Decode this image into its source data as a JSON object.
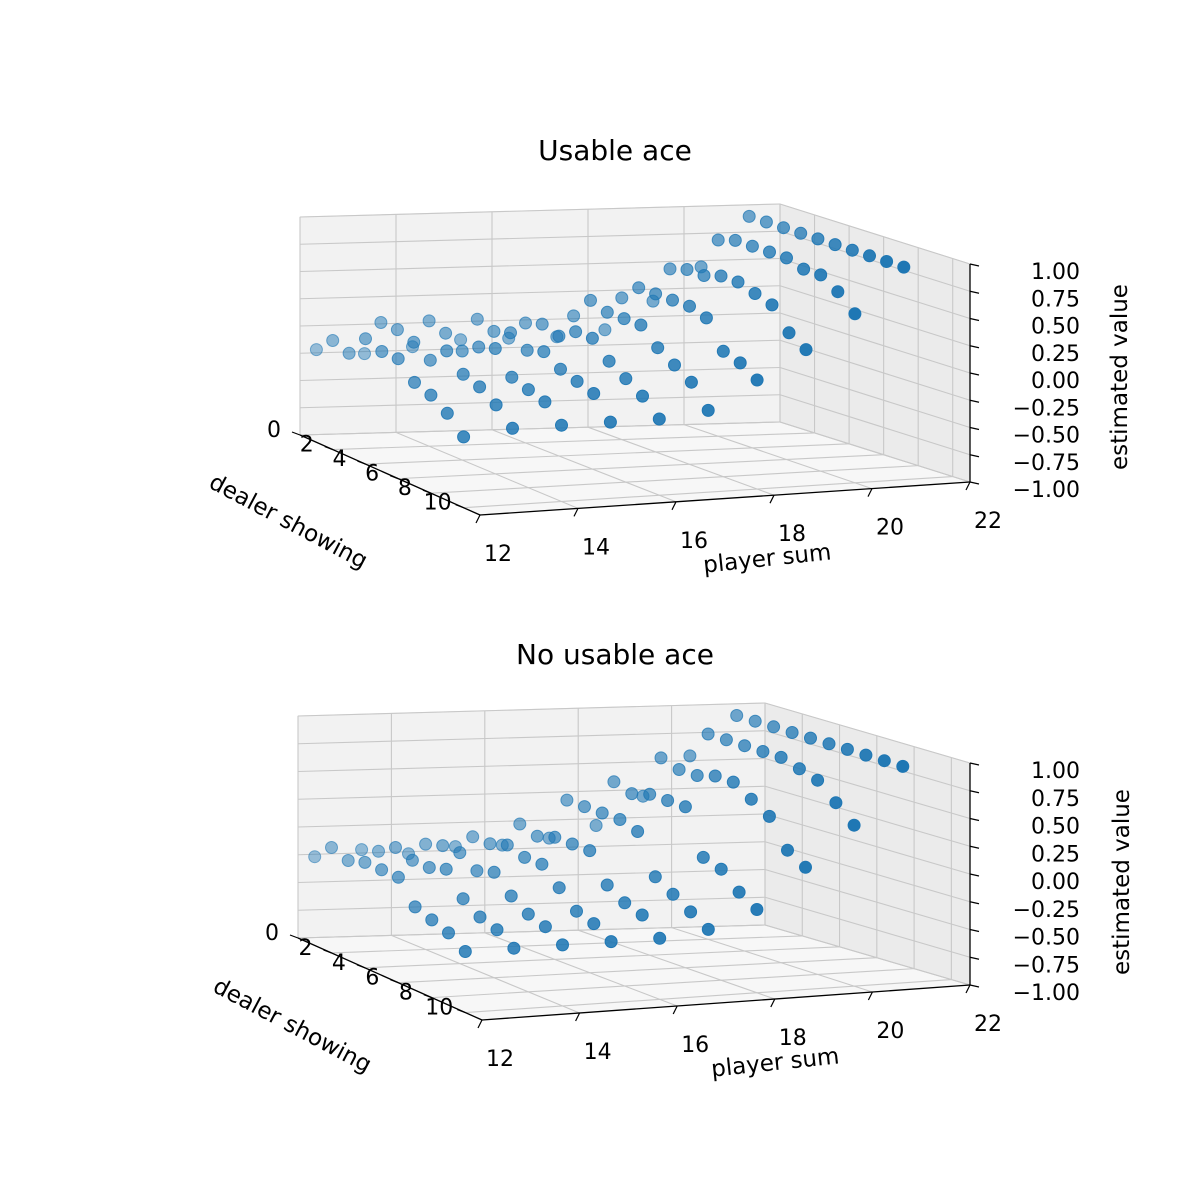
{
  "chart_data": [
    {
      "type": "scatter3d",
      "title": "Usable ace",
      "xlabel": "player sum",
      "ylabel": "dealer showing",
      "zlabel": "estimated value",
      "xlim": [
        12,
        22
      ],
      "ylim": [
        0,
        11
      ],
      "zlim": [
        -1.0,
        1.0
      ],
      "xticks": [
        "12",
        "14",
        "16",
        "18",
        "20",
        "22"
      ],
      "yticks": [
        "0",
        "2",
        "4",
        "6",
        "8",
        "10"
      ],
      "zticks": [
        "1.00",
        "0.75",
        "0.50",
        "0.25",
        "0.00",
        "−0.25",
        "−0.50",
        "−0.75",
        "−1.00"
      ],
      "grid": true,
      "marker_color": "#1f77b4",
      "points": [
        {
          "x": 12,
          "y": 1,
          "z": -0.15
        },
        {
          "x": 13,
          "y": 1,
          "z": -0.2
        },
        {
          "x": 14,
          "y": 1,
          "z": -0.15
        },
        {
          "x": 15,
          "y": 1,
          "z": -0.1
        },
        {
          "x": 16,
          "y": 1,
          "z": -0.1
        },
        {
          "x": 17,
          "y": 1,
          "z": -0.1
        },
        {
          "x": 18,
          "y": 1,
          "z": -0.05
        },
        {
          "x": 19,
          "y": 1,
          "z": 0.2
        },
        {
          "x": 20,
          "y": 1,
          "z": 0.5
        },
        {
          "x": 21,
          "y": 1,
          "z": 0.95
        },
        {
          "x": 12,
          "y": 2,
          "z": 0.0
        },
        {
          "x": 13,
          "y": 2,
          "z": 0.15
        },
        {
          "x": 14,
          "y": 2,
          "z": 0.15
        },
        {
          "x": 15,
          "y": 2,
          "z": 0.15
        },
        {
          "x": 16,
          "y": 2,
          "z": 0.1
        },
        {
          "x": 17,
          "y": 2,
          "z": 0.15
        },
        {
          "x": 18,
          "y": 2,
          "z": 0.3
        },
        {
          "x": 19,
          "y": 2,
          "z": 0.55
        },
        {
          "x": 20,
          "y": 2,
          "z": 0.8
        },
        {
          "x": 21,
          "y": 2,
          "z": 0.95
        },
        {
          "x": 12,
          "y": 3,
          "z": -0.05
        },
        {
          "x": 13,
          "y": 3,
          "z": 0.15
        },
        {
          "x": 14,
          "y": 3,
          "z": 0.1
        },
        {
          "x": 15,
          "y": 3,
          "z": 0.1
        },
        {
          "x": 16,
          "y": 3,
          "z": 0.15
        },
        {
          "x": 17,
          "y": 3,
          "z": 0.35
        },
        {
          "x": 18,
          "y": 3,
          "z": 0.45
        },
        {
          "x": 19,
          "y": 3,
          "z": 0.6
        },
        {
          "x": 20,
          "y": 3,
          "z": 0.85
        },
        {
          "x": 21,
          "y": 3,
          "z": 0.95
        },
        {
          "x": 12,
          "y": 4,
          "z": 0.15
        },
        {
          "x": 13,
          "y": 4,
          "z": 0.1
        },
        {
          "x": 14,
          "y": 4,
          "z": 0.0
        },
        {
          "x": 15,
          "y": 4,
          "z": 0.15
        },
        {
          "x": 16,
          "y": 4,
          "z": 0.1
        },
        {
          "x": 17,
          "y": 4,
          "z": 0.3
        },
        {
          "x": 18,
          "y": 4,
          "z": 0.45
        },
        {
          "x": 19,
          "y": 4,
          "z": 0.6
        },
        {
          "x": 20,
          "y": 4,
          "z": 0.85
        },
        {
          "x": 21,
          "y": 4,
          "z": 0.95
        },
        {
          "x": 12,
          "y": 5,
          "z": 0.1
        },
        {
          "x": 13,
          "y": 5,
          "z": 0.0
        },
        {
          "x": 14,
          "y": 5,
          "z": 0.1
        },
        {
          "x": 15,
          "y": 5,
          "z": 0.05
        },
        {
          "x": 16,
          "y": 5,
          "z": 0.2
        },
        {
          "x": 17,
          "y": 5,
          "z": 0.3
        },
        {
          "x": 18,
          "y": 5,
          "z": 0.45
        },
        {
          "x": 19,
          "y": 5,
          "z": 0.65
        },
        {
          "x": 20,
          "y": 5,
          "z": 0.85
        },
        {
          "x": 21,
          "y": 5,
          "z": 0.95
        },
        {
          "x": 12,
          "y": 6,
          "z": 0.1
        },
        {
          "x": 13,
          "y": 6,
          "z": 0.15
        },
        {
          "x": 14,
          "y": 6,
          "z": 0.15
        },
        {
          "x": 15,
          "y": 6,
          "z": 0.1
        },
        {
          "x": 16,
          "y": 6,
          "z": 0.2
        },
        {
          "x": 17,
          "y": 6,
          "z": 0.3
        },
        {
          "x": 18,
          "y": 6,
          "z": 0.45
        },
        {
          "x": 19,
          "y": 6,
          "z": 0.65
        },
        {
          "x": 20,
          "y": 6,
          "z": 0.85
        },
        {
          "x": 21,
          "y": 6,
          "z": 0.95
        },
        {
          "x": 12,
          "y": 7,
          "z": -0.05
        },
        {
          "x": 13,
          "y": 7,
          "z": 0.0
        },
        {
          "x": 14,
          "y": 7,
          "z": -0.05
        },
        {
          "x": 15,
          "y": 7,
          "z": 0.0
        },
        {
          "x": 16,
          "y": 7,
          "z": 0.05
        },
        {
          "x": 17,
          "y": 7,
          "z": 0.15
        },
        {
          "x": 18,
          "y": 7,
          "z": 0.4
        },
        {
          "x": 19,
          "y": 7,
          "z": 0.6
        },
        {
          "x": 20,
          "y": 7,
          "z": 0.8
        },
        {
          "x": 21,
          "y": 7,
          "z": 0.95
        },
        {
          "x": 12,
          "y": 8,
          "z": -0.1
        },
        {
          "x": 13,
          "y": 8,
          "z": -0.05
        },
        {
          "x": 14,
          "y": 8,
          "z": -0.1
        },
        {
          "x": 15,
          "y": 8,
          "z": -0.05
        },
        {
          "x": 16,
          "y": 8,
          "z": -0.05
        },
        {
          "x": 17,
          "y": 8,
          "z": 0.05
        },
        {
          "x": 18,
          "y": 8,
          "z": 0.15
        },
        {
          "x": 19,
          "y": 8,
          "z": 0.55
        },
        {
          "x": 20,
          "y": 8,
          "z": 0.8
        },
        {
          "x": 21,
          "y": 8,
          "z": 0.95
        },
        {
          "x": 12,
          "y": 9,
          "z": -0.2
        },
        {
          "x": 13,
          "y": 9,
          "z": -0.15
        },
        {
          "x": 14,
          "y": 9,
          "z": -0.15
        },
        {
          "x": 15,
          "y": 9,
          "z": -0.1
        },
        {
          "x": 16,
          "y": 9,
          "z": -0.15
        },
        {
          "x": 17,
          "y": 9,
          "z": -0.05
        },
        {
          "x": 18,
          "y": 9,
          "z": 0.1
        },
        {
          "x": 19,
          "y": 9,
          "z": 0.35
        },
        {
          "x": 20,
          "y": 9,
          "z": 0.7
        },
        {
          "x": 21,
          "y": 9,
          "z": 0.95
        },
        {
          "x": 12,
          "y": 10,
          "z": -0.35
        },
        {
          "x": 13,
          "y": 10,
          "z": -0.3
        },
        {
          "x": 14,
          "y": 10,
          "z": -0.3
        },
        {
          "x": 15,
          "y": 10,
          "z": -0.3
        },
        {
          "x": 16,
          "y": 10,
          "z": -0.3
        },
        {
          "x": 17,
          "y": 10,
          "z": -0.25
        },
        {
          "x": 18,
          "y": 10,
          "z": 0.0
        },
        {
          "x": 19,
          "y": 10,
          "z": 0.25
        },
        {
          "x": 20,
          "y": 10,
          "z": 0.55
        },
        {
          "x": 21,
          "y": 10,
          "z": 0.95
        }
      ]
    },
    {
      "type": "scatter3d",
      "title": "No usable ace",
      "xlabel": "player sum",
      "ylabel": "dealer showing",
      "zlabel": "estimated value",
      "xlim": [
        12,
        22
      ],
      "ylim": [
        0,
        11
      ],
      "zlim": [
        -1.0,
        1.0
      ],
      "xticks": [
        "12",
        "14",
        "16",
        "18",
        "20",
        "22"
      ],
      "yticks": [
        "0",
        "2",
        "4",
        "6",
        "8",
        "10"
      ],
      "zticks": [
        "1.00",
        "0.75",
        "0.50",
        "0.25",
        "0.00",
        "−0.25",
        "−0.50",
        "−0.75",
        "−1.00"
      ],
      "grid": true,
      "marker_color": "#1f77b4",
      "points": [
        {
          "x": 12,
          "y": 1,
          "z": -0.2
        },
        {
          "x": 13,
          "y": 1,
          "z": -0.15
        },
        {
          "x": 14,
          "y": 1,
          "z": -0.2
        },
        {
          "x": 15,
          "y": 1,
          "z": -0.15
        },
        {
          "x": 16,
          "y": 1,
          "z": -0.15
        },
        {
          "x": 17,
          "y": 1,
          "z": -0.1
        },
        {
          "x": 18,
          "y": 1,
          "z": 0.0
        },
        {
          "x": 19,
          "y": 1,
          "z": 0.25
        },
        {
          "x": 20,
          "y": 1,
          "z": 0.6
        },
        {
          "x": 21,
          "y": 1,
          "z": 0.95
        },
        {
          "x": 12,
          "y": 2,
          "z": -0.05
        },
        {
          "x": 13,
          "y": 2,
          "z": -0.1
        },
        {
          "x": 14,
          "y": 2,
          "z": -0.05
        },
        {
          "x": 15,
          "y": 2,
          "z": 0.0
        },
        {
          "x": 16,
          "y": 2,
          "z": 0.1
        },
        {
          "x": 17,
          "y": 2,
          "z": 0.3
        },
        {
          "x": 18,
          "y": 2,
          "z": 0.45
        },
        {
          "x": 19,
          "y": 2,
          "z": 0.65
        },
        {
          "x": 20,
          "y": 2,
          "z": 0.85
        },
        {
          "x": 21,
          "y": 2,
          "z": 0.95
        },
        {
          "x": 12,
          "y": 3,
          "z": -0.1
        },
        {
          "x": 13,
          "y": 3,
          "z": 0.0
        },
        {
          "x": 14,
          "y": 3,
          "z": 0.0
        },
        {
          "x": 15,
          "y": 3,
          "z": 0.0
        },
        {
          "x": 16,
          "y": 3,
          "z": 0.05
        },
        {
          "x": 17,
          "y": 3,
          "z": 0.3
        },
        {
          "x": 18,
          "y": 3,
          "z": 0.4
        },
        {
          "x": 19,
          "y": 3,
          "z": 0.6
        },
        {
          "x": 20,
          "y": 3,
          "z": 0.85
        },
        {
          "x": 21,
          "y": 3,
          "z": 0.95
        },
        {
          "x": 12,
          "y": 4,
          "z": -0.05
        },
        {
          "x": 13,
          "y": 4,
          "z": -0.05
        },
        {
          "x": 14,
          "y": 4,
          "z": 0.0
        },
        {
          "x": 15,
          "y": 4,
          "z": 0.05
        },
        {
          "x": 16,
          "y": 4,
          "z": 0.1
        },
        {
          "x": 17,
          "y": 4,
          "z": 0.3
        },
        {
          "x": 18,
          "y": 4,
          "z": 0.45
        },
        {
          "x": 19,
          "y": 4,
          "z": 0.6
        },
        {
          "x": 20,
          "y": 4,
          "z": 0.85
        },
        {
          "x": 21,
          "y": 4,
          "z": 0.95
        },
        {
          "x": 12,
          "y": 5,
          "z": -0.05
        },
        {
          "x": 13,
          "y": 5,
          "z": -0.05
        },
        {
          "x": 14,
          "y": 5,
          "z": -0.1
        },
        {
          "x": 15,
          "y": 5,
          "z": 0.0
        },
        {
          "x": 16,
          "y": 5,
          "z": 0.1
        },
        {
          "x": 17,
          "y": 5,
          "z": 0.3
        },
        {
          "x": 18,
          "y": 5,
          "z": 0.45
        },
        {
          "x": 19,
          "y": 5,
          "z": 0.65
        },
        {
          "x": 20,
          "y": 5,
          "z": 0.85
        },
        {
          "x": 21,
          "y": 5,
          "z": 0.95
        },
        {
          "x": 12,
          "y": 6,
          "z": -0.05
        },
        {
          "x": 13,
          "y": 6,
          "z": 0.0
        },
        {
          "x": 14,
          "y": 6,
          "z": -0.05
        },
        {
          "x": 15,
          "y": 6,
          "z": 0.0
        },
        {
          "x": 16,
          "y": 6,
          "z": 0.1
        },
        {
          "x": 17,
          "y": 6,
          "z": 0.25
        },
        {
          "x": 18,
          "y": 6,
          "z": 0.45
        },
        {
          "x": 19,
          "y": 6,
          "z": 0.65
        },
        {
          "x": 20,
          "y": 6,
          "z": 0.85
        },
        {
          "x": 21,
          "y": 6,
          "z": 0.95
        },
        {
          "x": 12,
          "y": 7,
          "z": -0.25
        },
        {
          "x": 13,
          "y": 7,
          "z": -0.2
        },
        {
          "x": 14,
          "y": 7,
          "z": -0.2
        },
        {
          "x": 15,
          "y": 7,
          "z": -0.15
        },
        {
          "x": 16,
          "y": 7,
          "z": -0.15
        },
        {
          "x": 17,
          "y": 7,
          "z": -0.1
        },
        {
          "x": 18,
          "y": 7,
          "z": 0.05
        },
        {
          "x": 19,
          "y": 7,
          "z": 0.55
        },
        {
          "x": 20,
          "y": 7,
          "z": 0.8
        },
        {
          "x": 21,
          "y": 7,
          "z": 0.95
        },
        {
          "x": 12,
          "y": 8,
          "z": -0.3
        },
        {
          "x": 13,
          "y": 8,
          "z": -0.3
        },
        {
          "x": 14,
          "y": 8,
          "z": -0.3
        },
        {
          "x": 15,
          "y": 8,
          "z": -0.3
        },
        {
          "x": 16,
          "y": 8,
          "z": -0.25
        },
        {
          "x": 17,
          "y": 8,
          "z": -0.2
        },
        {
          "x": 18,
          "y": 8,
          "z": 0.0
        },
        {
          "x": 19,
          "y": 8,
          "z": 0.45
        },
        {
          "x": 20,
          "y": 8,
          "z": 0.75
        },
        {
          "x": 21,
          "y": 8,
          "z": 0.95
        },
        {
          "x": 12,
          "y": 9,
          "z": -0.35
        },
        {
          "x": 13,
          "y": 9,
          "z": -0.35
        },
        {
          "x": 14,
          "y": 9,
          "z": -0.35
        },
        {
          "x": 15,
          "y": 9,
          "z": -0.35
        },
        {
          "x": 16,
          "y": 9,
          "z": -0.3
        },
        {
          "x": 17,
          "y": 9,
          "z": -0.3
        },
        {
          "x": 18,
          "y": 9,
          "z": -0.15
        },
        {
          "x": 19,
          "y": 9,
          "z": 0.2
        },
        {
          "x": 20,
          "y": 9,
          "z": 0.6
        },
        {
          "x": 21,
          "y": 9,
          "z": 0.95
        },
        {
          "x": 12,
          "y": 10,
          "z": -0.45
        },
        {
          "x": 13,
          "y": 10,
          "z": -0.45
        },
        {
          "x": 14,
          "y": 10,
          "z": -0.45
        },
        {
          "x": 15,
          "y": 10,
          "z": -0.45
        },
        {
          "x": 16,
          "y": 10,
          "z": -0.45
        },
        {
          "x": 17,
          "y": 10,
          "z": -0.4
        },
        {
          "x": 18,
          "y": 10,
          "z": -0.25
        },
        {
          "x": 19,
          "y": 10,
          "z": 0.1
        },
        {
          "x": 20,
          "y": 10,
          "z": 0.45
        },
        {
          "x": 21,
          "y": 10,
          "z": 0.95
        }
      ]
    }
  ]
}
